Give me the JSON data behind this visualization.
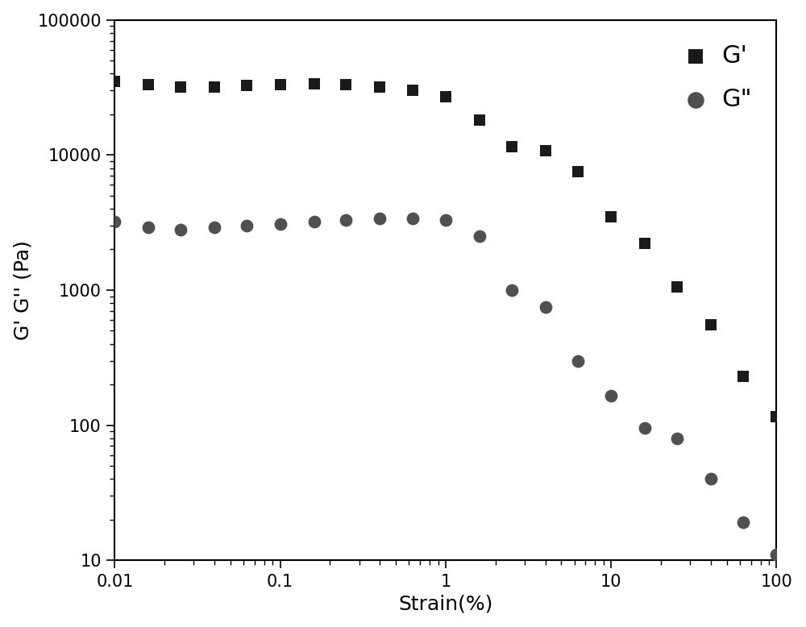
{
  "G_prime_x": [
    0.01,
    0.016,
    0.025,
    0.04,
    0.063,
    0.1,
    0.16,
    0.25,
    0.4,
    0.63,
    1.0,
    1.6,
    2.5,
    4.0,
    6.3,
    10.0,
    16.0,
    25.0,
    40.0,
    63.0,
    100.0
  ],
  "G_prime_y": [
    35000,
    33000,
    32000,
    32000,
    32500,
    33000,
    33500,
    33000,
    32000,
    30000,
    27000,
    18000,
    11500,
    10800,
    7500,
    3500,
    2200,
    1050,
    550,
    230,
    115
  ],
  "G_double_prime_x": [
    0.01,
    0.016,
    0.025,
    0.04,
    0.063,
    0.1,
    0.16,
    0.25,
    0.4,
    0.63,
    1.0,
    1.6,
    2.5,
    4.0,
    6.3,
    10.0,
    16.0,
    25.0,
    40.0,
    63.0,
    100.0
  ],
  "G_double_prime_y": [
    3200,
    2900,
    2800,
    2900,
    3000,
    3100,
    3200,
    3300,
    3400,
    3400,
    3300,
    2500,
    1000,
    750,
    300,
    165,
    95,
    80,
    40,
    19,
    11
  ],
  "square_color": "#1a1a1a",
  "circle_color": "#505050",
  "marker_square_size": 100,
  "marker_circle_size": 130,
  "xlabel": "Strain(%)",
  "ylabel": "G' G'' (Pa)",
  "xlim": [
    0.01,
    100
  ],
  "ylim": [
    10,
    100000
  ],
  "legend_labels": [
    "G'",
    "G\""
  ],
  "background_color": "#ffffff",
  "axes_color": "#000000",
  "grid": false,
  "axis_fontsize": 18,
  "tick_fontsize": 15,
  "legend_fontsize": 22
}
